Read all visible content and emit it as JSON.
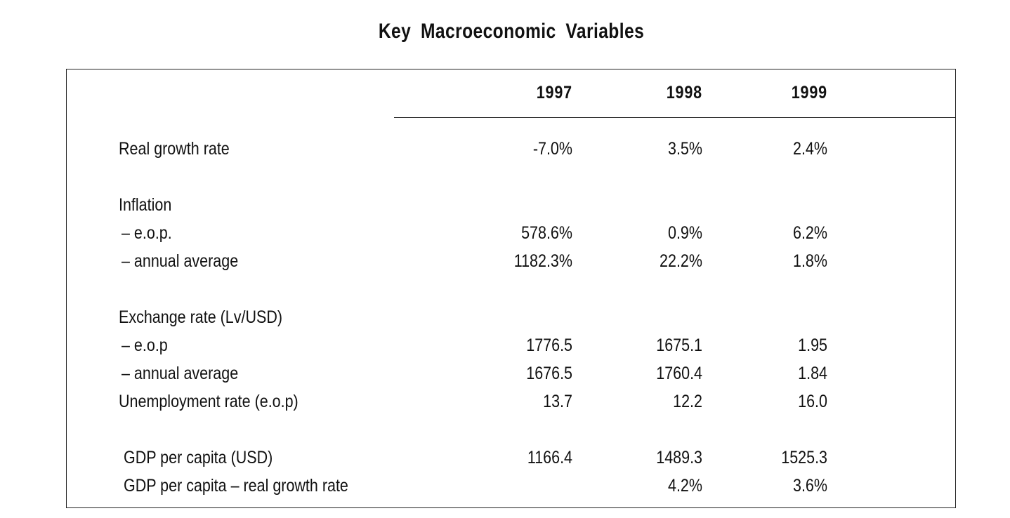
{
  "title": "Key  Macroeconomic  Variables",
  "table": {
    "years": [
      "1997",
      "1998",
      "1999"
    ],
    "rows": [
      {
        "label": "Real growth rate",
        "values": [
          "-7.0%",
          "3.5%",
          "2.4%"
        ]
      },
      {
        "label": "Inflation",
        "values": [
          "",
          "",
          ""
        ]
      },
      {
        "label": "– e.o.p.",
        "values": [
          "578.6%",
          "0.9%",
          "6.2%"
        ]
      },
      {
        "label": "– annual average",
        "values": [
          "1182.3%",
          "22.2%",
          "1.8%"
        ]
      },
      {
        "label": "Exchange rate (Lv/USD)",
        "values": [
          "",
          "",
          ""
        ]
      },
      {
        "label": "– e.o.p",
        "values": [
          "1776.5",
          "1675.1",
          "1.95"
        ]
      },
      {
        "label": "– annual average",
        "values": [
          "1676.5",
          "1760.4",
          "1.84"
        ]
      },
      {
        "label": "Unemployment rate (e.o.p)",
        "values": [
          "13.7",
          "12.2",
          "16.0"
        ]
      },
      {
        "label": "GDP per capita (USD)",
        "values": [
          "1166.4",
          "1489.3",
          "1525.3"
        ]
      },
      {
        "label": "GDP per capita – real growth rate",
        "values": [
          "",
          "4.2%",
          "3.6%"
        ]
      }
    ]
  }
}
